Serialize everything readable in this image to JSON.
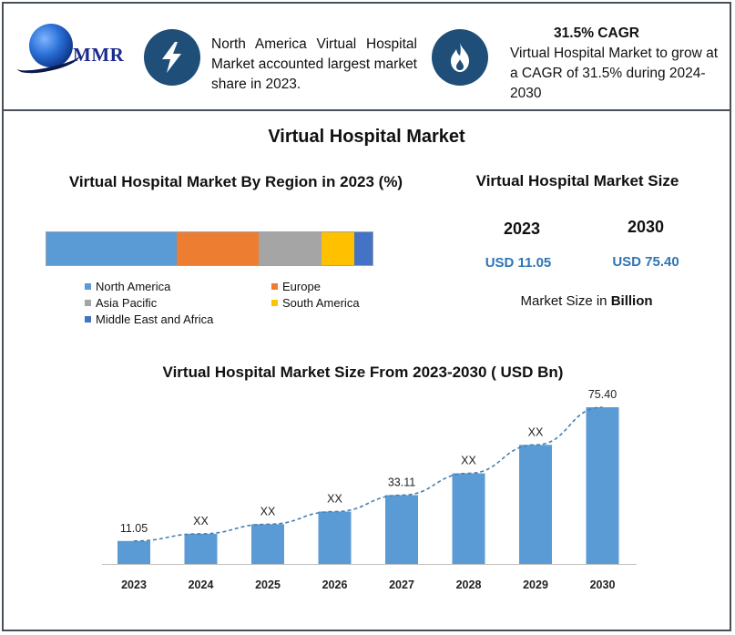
{
  "header": {
    "logo_text": "MMR",
    "fact1_text": "North America Virtual Hospital Market accounted largest market share in 2023.",
    "fact2_title": "31.5% CAGR",
    "fact2_text": "Virtual Hospital Market to grow at a CAGR of 31.5% during 2024-2030",
    "icons": [
      "lightning-bolt-icon",
      "flame-icon"
    ]
  },
  "main_title": "Virtual Hospital Market",
  "region_chart": {
    "title": "Virtual Hospital Market By Region in 2023 (%)",
    "segments": [
      {
        "name": "North America",
        "share": 0.4,
        "color": "#5b9bd5"
      },
      {
        "name": "Europe",
        "share": 0.25,
        "color": "#ed7d31"
      },
      {
        "name": "Asia Pacific",
        "share": 0.195,
        "color": "#a5a5a5"
      },
      {
        "name": "South America",
        "share": 0.1,
        "color": "#ffc000"
      },
      {
        "name": "Middle East and Africa",
        "share": 0.055,
        "color": "#4472c4"
      }
    ]
  },
  "market_size": {
    "title": "Virtual Hospital Market Size",
    "year_start": "2023",
    "year_end": "2030",
    "value_start": "USD 11.05",
    "value_end": "USD 75.40",
    "unit_prefix": "Market Size in ",
    "unit_bold": "Billion"
  },
  "chart_data": {
    "type": "bar",
    "title": "Virtual Hospital Market Size From 2023-2030 ( USD Bn)",
    "categories": [
      "2023",
      "2024",
      "2025",
      "2026",
      "2027",
      "2028",
      "2029",
      "2030"
    ],
    "values": [
      11.05,
      14.5,
      19.1,
      25.2,
      33.11,
      43.6,
      57.3,
      75.4
    ],
    "data_labels": [
      "11.05",
      "XX",
      "XX",
      "XX",
      "33.11",
      "XX",
      "XX",
      "75.40"
    ],
    "trendline": "dashed",
    "ylim": [
      0,
      75.4
    ],
    "bar_color": "#5b9bd5",
    "grid": false
  }
}
